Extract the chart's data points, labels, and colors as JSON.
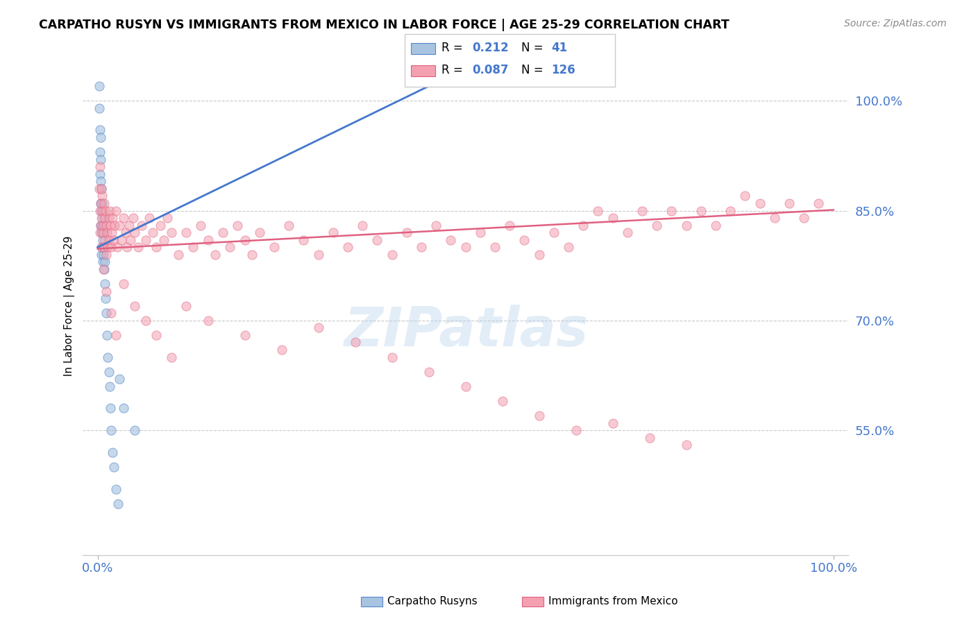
{
  "title": "CARPATHO RUSYN VS IMMIGRANTS FROM MEXICO IN LABOR FORCE | AGE 25-29 CORRELATION CHART",
  "source": "Source: ZipAtlas.com",
  "ylabel": "In Labor Force | Age 25-29",
  "right_yticks": [
    0.55,
    0.7,
    0.85,
    1.0
  ],
  "right_ytick_labels": [
    "55.0%",
    "70.0%",
    "85.0%",
    "100.0%"
  ],
  "blue_color": "#A8C4E0",
  "pink_color": "#F4A0B0",
  "blue_edge_color": "#5588CC",
  "pink_edge_color": "#E06080",
  "blue_line_color": "#4477CC",
  "pink_line_color": "#E06080",
  "tick_color": "#4477CC",
  "watermark": "ZIPatlas",
  "ylim_low": 0.38,
  "ylim_high": 1.06,
  "xlim_low": -0.02,
  "xlim_high": 1.02,
  "blue_x": [
    0.002,
    0.002,
    0.003,
    0.003,
    0.003,
    0.004,
    0.004,
    0.004,
    0.004,
    0.004,
    0.005,
    0.005,
    0.005,
    0.005,
    0.006,
    0.006,
    0.006,
    0.007,
    0.007,
    0.007,
    0.008,
    0.008,
    0.009,
    0.009,
    0.01,
    0.01,
    0.011,
    0.012,
    0.013,
    0.014,
    0.015,
    0.016,
    0.017,
    0.018,
    0.02,
    0.022,
    0.025,
    0.028,
    0.03,
    0.035,
    0.05
  ],
  "blue_y": [
    1.02,
    0.99,
    0.96,
    0.93,
    0.9,
    0.95,
    0.92,
    0.89,
    0.86,
    0.83,
    0.88,
    0.85,
    0.82,
    0.79,
    0.86,
    0.83,
    0.8,
    0.84,
    0.81,
    0.78,
    0.82,
    0.79,
    0.8,
    0.77,
    0.78,
    0.75,
    0.73,
    0.71,
    0.68,
    0.65,
    0.63,
    0.61,
    0.58,
    0.55,
    0.52,
    0.5,
    0.47,
    0.45,
    0.62,
    0.58,
    0.55
  ],
  "pink_x": [
    0.002,
    0.003,
    0.003,
    0.004,
    0.004,
    0.005,
    0.005,
    0.006,
    0.007,
    0.007,
    0.008,
    0.008,
    0.009,
    0.01,
    0.01,
    0.011,
    0.012,
    0.012,
    0.013,
    0.014,
    0.015,
    0.015,
    0.016,
    0.017,
    0.018,
    0.019,
    0.02,
    0.022,
    0.023,
    0.025,
    0.027,
    0.03,
    0.032,
    0.035,
    0.038,
    0.04,
    0.043,
    0.045,
    0.048,
    0.05,
    0.055,
    0.06,
    0.065,
    0.07,
    0.075,
    0.08,
    0.085,
    0.09,
    0.095,
    0.1,
    0.11,
    0.12,
    0.13,
    0.14,
    0.15,
    0.16,
    0.17,
    0.18,
    0.19,
    0.2,
    0.21,
    0.22,
    0.24,
    0.26,
    0.28,
    0.3,
    0.32,
    0.34,
    0.36,
    0.38,
    0.4,
    0.42,
    0.44,
    0.46,
    0.48,
    0.5,
    0.52,
    0.54,
    0.56,
    0.58,
    0.6,
    0.62,
    0.64,
    0.66,
    0.68,
    0.7,
    0.72,
    0.74,
    0.76,
    0.78,
    0.8,
    0.82,
    0.84,
    0.86,
    0.88,
    0.9,
    0.92,
    0.94,
    0.96,
    0.98,
    0.035,
    0.05,
    0.065,
    0.08,
    0.1,
    0.12,
    0.15,
    0.2,
    0.25,
    0.3,
    0.35,
    0.4,
    0.45,
    0.5,
    0.55,
    0.6,
    0.65,
    0.7,
    0.75,
    0.8,
    0.003,
    0.005,
    0.008,
    0.012,
    0.018,
    0.025
  ],
  "pink_y": [
    0.88,
    0.85,
    0.82,
    0.86,
    0.83,
    0.84,
    0.8,
    0.87,
    0.85,
    0.82,
    0.83,
    0.8,
    0.86,
    0.84,
    0.81,
    0.85,
    0.83,
    0.79,
    0.82,
    0.8,
    0.84,
    0.81,
    0.85,
    0.83,
    0.8,
    0.82,
    0.84,
    0.81,
    0.83,
    0.85,
    0.8,
    0.83,
    0.81,
    0.84,
    0.82,
    0.8,
    0.83,
    0.81,
    0.84,
    0.82,
    0.8,
    0.83,
    0.81,
    0.84,
    0.82,
    0.8,
    0.83,
    0.81,
    0.84,
    0.82,
    0.79,
    0.82,
    0.8,
    0.83,
    0.81,
    0.79,
    0.82,
    0.8,
    0.83,
    0.81,
    0.79,
    0.82,
    0.8,
    0.83,
    0.81,
    0.79,
    0.82,
    0.8,
    0.83,
    0.81,
    0.79,
    0.82,
    0.8,
    0.83,
    0.81,
    0.8,
    0.82,
    0.8,
    0.83,
    0.81,
    0.79,
    0.82,
    0.8,
    0.83,
    0.85,
    0.84,
    0.82,
    0.85,
    0.83,
    0.85,
    0.83,
    0.85,
    0.83,
    0.85,
    0.87,
    0.86,
    0.84,
    0.86,
    0.84,
    0.86,
    0.75,
    0.72,
    0.7,
    0.68,
    0.65,
    0.72,
    0.7,
    0.68,
    0.66,
    0.69,
    0.67,
    0.65,
    0.63,
    0.61,
    0.59,
    0.57,
    0.55,
    0.56,
    0.54,
    0.53,
    0.91,
    0.88,
    0.77,
    0.74,
    0.71,
    0.68
  ],
  "blue_trend_x": [
    0.0,
    1.0
  ],
  "blue_trend_y_start": 0.8,
  "blue_trend_y_end": 1.02,
  "pink_trend_y_start": 0.798,
  "pink_trend_y_end": 0.851
}
